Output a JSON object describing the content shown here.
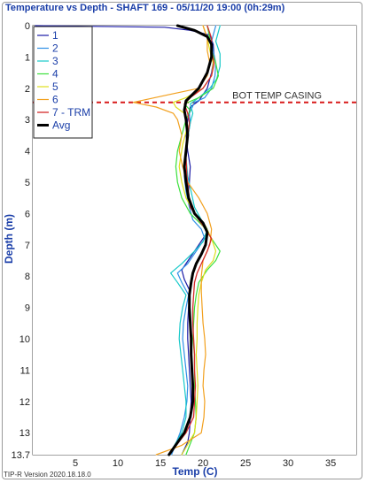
{
  "chart_data": {
    "type": "line",
    "title": "Temperature vs Depth - SHAFT 169 - 05/11/20 19:00 (0h:29m)",
    "xlabel": "Temp (C)",
    "ylabel": "Depth (m)",
    "xlim": [
      0,
      38
    ],
    "ylim": [
      0,
      13.7
    ],
    "y_inverted": true,
    "x_ticks": [
      0,
      5,
      10,
      15,
      20,
      25,
      30,
      35
    ],
    "x_tick_labels": [
      "",
      "5",
      "10",
      "15",
      "20",
      "25",
      "30",
      "35"
    ],
    "y_ticks": [
      0,
      1,
      2,
      3,
      4,
      5,
      6,
      7,
      8,
      9,
      10,
      11,
      12,
      13,
      13.7
    ],
    "y_tick_labels": [
      "0",
      "1",
      "2",
      "3",
      "4",
      "5",
      "6",
      "7",
      "8",
      "9",
      "10",
      "11",
      "12",
      "13",
      "13.7"
    ],
    "grid": true,
    "legend_position": "top-left",
    "annotation": {
      "label": "BOT TEMP CASING",
      "depth": 2.45,
      "color": "#d81b1b"
    },
    "series": [
      {
        "name": "1",
        "color": "#1a1aa6",
        "width": 1.2,
        "x": [
          0.3,
          15.5,
          18.5,
          20.8,
          21.2,
          21.3,
          21.0,
          20.5,
          19.5,
          18.5,
          18.2,
          18.0,
          18.2,
          18.5,
          18.4,
          18.2,
          19.0,
          20.0,
          20.5,
          19.5,
          18.5,
          17.5,
          17.8,
          18.5,
          18.3,
          18.2,
          18.2,
          18.3,
          18.4,
          18.5,
          18.6,
          18.5,
          18.4,
          18.2,
          17.5
        ],
        "y": [
          0,
          0.05,
          0.15,
          0.3,
          0.6,
          1.0,
          1.5,
          2.0,
          2.4,
          2.6,
          3.0,
          3.5,
          4.0,
          4.5,
          5.0,
          5.5,
          6.0,
          6.3,
          6.6,
          7.0,
          7.4,
          7.8,
          8.1,
          8.5,
          9.0,
          9.5,
          10.0,
          10.5,
          11.0,
          11.5,
          12.0,
          12.5,
          13.0,
          13.3,
          13.7
        ]
      },
      {
        "name": "2",
        "color": "#2f8fe6",
        "width": 1.2,
        "x": [
          21.5,
          21.0,
          21.2,
          21.5,
          21.4,
          21.0,
          20.2,
          19.0,
          18.4,
          18.5,
          18.2,
          18.0,
          17.8,
          18.0,
          18.4,
          18.8,
          19.8,
          20.2,
          19.2,
          18.2,
          17.0,
          17.5,
          18.3,
          18.0,
          17.7,
          17.6,
          17.8,
          18.0,
          18.2,
          18.1,
          17.8,
          17.3,
          16.3
        ],
        "y": [
          0,
          0.5,
          0.8,
          1.2,
          1.6,
          2.0,
          2.3,
          2.45,
          2.8,
          3.1,
          3.6,
          4.2,
          4.8,
          5.3,
          5.8,
          6.2,
          6.5,
          6.8,
          7.2,
          7.6,
          7.9,
          8.2,
          8.6,
          9.0,
          9.5,
          10.0,
          10.5,
          11.0,
          11.5,
          12.0,
          12.5,
          13.0,
          13.7
        ]
      },
      {
        "name": "3",
        "color": "#16c9c9",
        "width": 1.2,
        "x": [
          22.0,
          21.5,
          22.0,
          22.0,
          21.6,
          20.8,
          19.5,
          18.5,
          18.8,
          18.5,
          18.2,
          18.0,
          18.2,
          18.6,
          19.0,
          19.8,
          20.5,
          20.0,
          19.0,
          17.5,
          16.2,
          17.0,
          18.0,
          17.6,
          17.3,
          17.2,
          17.4,
          17.6,
          17.8,
          18.0,
          18.0,
          17.5,
          16.0
        ],
        "y": [
          0,
          0.5,
          0.9,
          1.3,
          1.7,
          2.0,
          2.3,
          2.5,
          2.8,
          3.1,
          3.6,
          4.2,
          4.8,
          5.3,
          5.8,
          6.2,
          6.5,
          6.9,
          7.2,
          7.6,
          7.9,
          8.2,
          8.6,
          9.0,
          9.5,
          10.0,
          10.5,
          11.0,
          11.5,
          12.0,
          12.5,
          13.0,
          13.7
        ]
      },
      {
        "name": "4",
        "color": "#3be03b",
        "width": 1.2,
        "x": [
          20.5,
          20.8,
          21.0,
          21.5,
          21.8,
          21.2,
          19.5,
          17.8,
          18.5,
          18.0,
          17.5,
          17.0,
          16.8,
          17.0,
          17.5,
          18.5,
          20.0,
          21.0,
          22.0,
          21.5,
          20.5,
          19.5,
          19.2,
          19.0,
          18.9,
          18.8,
          19.0,
          19.0,
          19.0,
          19.1,
          19.2,
          19.0,
          18.0
        ],
        "y": [
          0,
          0.4,
          0.8,
          1.2,
          1.6,
          2.0,
          2.3,
          2.5,
          2.7,
          3.0,
          3.5,
          4.0,
          4.5,
          5.0,
          5.5,
          6.0,
          6.4,
          6.8,
          7.2,
          7.5,
          7.8,
          8.2,
          8.6,
          9.0,
          9.5,
          10.0,
          10.5,
          11.0,
          11.5,
          12.0,
          12.5,
          13.0,
          13.7
        ]
      },
      {
        "name": "5",
        "color": "#dede1c",
        "width": 1.2,
        "x": [
          20.0,
          20.5,
          20.8,
          21.2,
          21.0,
          20.0,
          18.0,
          16.5,
          16.8,
          17.8,
          18.2,
          17.6,
          17.2,
          17.5,
          18.0,
          19.0,
          20.3,
          21.0,
          21.5,
          21.2,
          20.3,
          19.8,
          19.5,
          19.4,
          19.3,
          19.3,
          19.2,
          19.3,
          19.4,
          19.3,
          19.2,
          19.0,
          17.5
        ],
        "y": [
          0,
          0.4,
          0.8,
          1.2,
          1.6,
          2.0,
          2.3,
          2.45,
          2.6,
          2.8,
          3.2,
          3.8,
          4.5,
          5.0,
          5.5,
          6.0,
          6.4,
          6.8,
          7.2,
          7.5,
          7.8,
          8.2,
          8.6,
          9.0,
          9.5,
          10.0,
          10.5,
          11.0,
          11.5,
          12.0,
          12.5,
          13.0,
          13.7
        ]
      },
      {
        "name": "6",
        "color": "#f2a01e",
        "width": 1.2,
        "x": [
          20.0,
          20.5,
          20.5,
          20.8,
          20.5,
          19.5,
          16.0,
          11.8,
          14.5,
          16.5,
          17.0,
          17.5,
          17.2,
          17.6,
          18.2,
          19.5,
          20.5,
          21.0,
          20.8,
          20.0,
          19.8,
          19.8,
          19.9,
          20.0,
          20.2,
          20.3,
          20.1,
          20.0,
          20.2,
          20.1,
          19.8,
          17.5,
          14.5
        ],
        "y": [
          0,
          0.4,
          0.8,
          1.2,
          1.6,
          2.0,
          2.2,
          2.45,
          2.6,
          2.8,
          3.0,
          3.5,
          4.0,
          4.5,
          5.0,
          5.5,
          6.0,
          6.5,
          7.0,
          7.5,
          8.0,
          8.5,
          9.0,
          9.5,
          10.0,
          10.5,
          11.0,
          11.5,
          12.0,
          12.5,
          13.0,
          13.4,
          13.7
        ]
      },
      {
        "name": "7 - TRM",
        "color": "#d42a2a",
        "width": 1.3,
        "x": [
          20.5,
          21.0,
          21.0,
          21.3,
          21.0,
          20.0,
          18.5,
          17.8,
          18.2,
          18.4,
          18.2,
          18.0,
          18.1,
          18.3,
          18.5,
          19.5,
          20.3,
          21.0,
          20.5,
          19.8,
          19.3,
          19.0,
          18.9,
          18.8,
          18.8,
          18.9,
          19.0,
          19.0,
          19.1,
          19.0,
          18.9,
          18.0,
          16.0
        ],
        "y": [
          0,
          0.4,
          0.8,
          1.2,
          1.6,
          2.0,
          2.3,
          2.5,
          2.8,
          3.1,
          3.6,
          4.2,
          4.8,
          5.3,
          5.8,
          6.2,
          6.5,
          6.8,
          7.2,
          7.6,
          7.9,
          8.2,
          8.6,
          9.0,
          9.5,
          10.0,
          10.5,
          11.0,
          11.5,
          12.0,
          12.5,
          13.0,
          13.7
        ]
      },
      {
        "name": "Avg",
        "color": "#000000",
        "width": 3.0,
        "x": [
          17.0,
          19.0,
          20.5,
          21.0,
          21.0,
          20.5,
          19.5,
          18.0,
          17.8,
          18.0,
          18.2,
          18.0,
          17.8,
          18.0,
          18.3,
          19.0,
          20.0,
          20.5,
          20.3,
          19.8,
          19.2,
          18.8,
          18.6,
          18.4,
          18.4,
          18.5,
          18.6,
          18.6,
          18.7,
          18.8,
          18.8,
          18.5,
          17.8,
          16.0
        ],
        "y": [
          0,
          0.15,
          0.35,
          0.6,
          1.0,
          1.5,
          2.0,
          2.4,
          2.7,
          3.0,
          3.5,
          4.0,
          4.5,
          5.0,
          5.5,
          6.0,
          6.3,
          6.6,
          7.0,
          7.3,
          7.6,
          7.9,
          8.2,
          8.6,
          9.0,
          9.5,
          10.0,
          10.5,
          11.0,
          11.5,
          12.0,
          12.5,
          13.0,
          13.7
        ]
      }
    ]
  },
  "version_label": "TIP-R Version 2020.18.18.0"
}
